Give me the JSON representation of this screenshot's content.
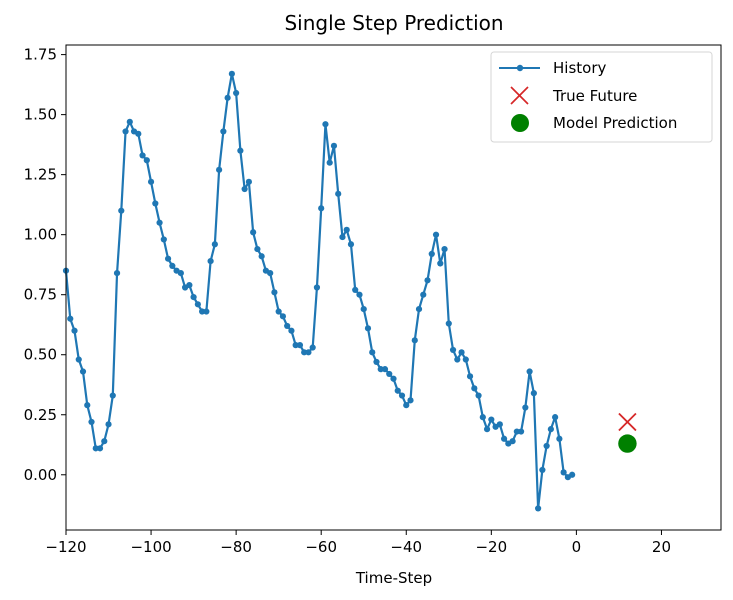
{
  "chart_data": {
    "type": "line",
    "title": "Single Step Prediction",
    "xlabel": "Time-Step",
    "ylabel": "",
    "xlim": [
      -120,
      34
    ],
    "ylim": [
      -0.23,
      1.79
    ],
    "grid": false,
    "legend_position": "top-right",
    "x_ticks": [
      -120,
      -100,
      -80,
      -60,
      -40,
      -20,
      0,
      20
    ],
    "y_ticks": [
      0.0,
      0.25,
      0.5,
      0.75,
      1.0,
      1.25,
      1.5,
      1.75
    ],
    "x_tick_labels": [
      "−120",
      "−100",
      "−80",
      "−60",
      "−40",
      "−20",
      "0",
      "20"
    ],
    "y_tick_labels": [
      "0.00",
      "0.25",
      "0.50",
      "0.75",
      "1.00",
      "1.25",
      "1.50",
      "1.75"
    ],
    "series": [
      {
        "name": "History",
        "kind": "line-marker",
        "color": "#1f77b4",
        "x": [
          -120,
          -119,
          -118,
          -117,
          -116,
          -115,
          -114,
          -113,
          -112,
          -111,
          -110,
          -109,
          -108,
          -107,
          -106,
          -105,
          -104,
          -103,
          -102,
          -101,
          -100,
          -99,
          -98,
          -97,
          -96,
          -95,
          -94,
          -93,
          -92,
          -91,
          -90,
          -89,
          -88,
          -87,
          -86,
          -85,
          -84,
          -83,
          -82,
          -81,
          -80,
          -79,
          -78,
          -77,
          -76,
          -75,
          -74,
          -73,
          -72,
          -71,
          -70,
          -69,
          -68,
          -67,
          -66,
          -65,
          -64,
          -63,
          -62,
          -61,
          -60,
          -59,
          -58,
          -57,
          -56,
          -55,
          -54,
          -53,
          -52,
          -51,
          -50,
          -49,
          -48,
          -47,
          -46,
          -45,
          -44,
          -43,
          -42,
          -41,
          -40,
          -39,
          -38,
          -37,
          -36,
          -35,
          -34,
          -33,
          -32,
          -31,
          -30,
          -29,
          -28,
          -27,
          -26,
          -25,
          -24,
          -23,
          -22,
          -21,
          -20,
          -19,
          -18,
          -17,
          -16,
          -15,
          -14,
          -13,
          -12,
          -11,
          -10,
          -9,
          -8,
          -7,
          -6,
          -5,
          -4,
          -3,
          -2,
          -1
        ],
        "y": [
          0.85,
          0.65,
          0.6,
          0.48,
          0.43,
          0.29,
          0.22,
          0.11,
          0.11,
          0.14,
          0.21,
          0.33,
          0.84,
          1.1,
          1.43,
          1.47,
          1.43,
          1.42,
          1.33,
          1.31,
          1.22,
          1.13,
          1.05,
          0.98,
          0.9,
          0.87,
          0.85,
          0.84,
          0.78,
          0.79,
          0.74,
          0.71,
          0.68,
          0.68,
          0.89,
          0.96,
          1.27,
          1.43,
          1.57,
          1.67,
          1.59,
          1.35,
          1.19,
          1.22,
          1.01,
          0.94,
          0.91,
          0.85,
          0.84,
          0.76,
          0.68,
          0.66,
          0.62,
          0.6,
          0.54,
          0.54,
          0.51,
          0.51,
          0.53,
          0.78,
          1.11,
          1.46,
          1.3,
          1.37,
          1.17,
          0.99,
          1.02,
          0.96,
          0.77,
          0.75,
          0.69,
          0.61,
          0.51,
          0.47,
          0.44,
          0.44,
          0.42,
          0.4,
          0.35,
          0.33,
          0.29,
          0.31,
          0.56,
          0.69,
          0.75,
          0.81,
          0.92,
          1.0,
          0.88,
          0.94,
          0.63,
          0.52,
          0.48,
          0.51,
          0.48,
          0.41,
          0.36,
          0.33,
          0.24,
          0.19,
          0.23,
          0.2,
          0.21,
          0.15,
          0.13,
          0.14,
          0.18,
          0.18,
          0.28,
          0.43,
          0.34,
          -0.14,
          0.02,
          0.12,
          0.19,
          0.24,
          0.15,
          0.01,
          -0.01,
          0.0
        ]
      },
      {
        "name": "True Future",
        "kind": "x-marker",
        "color": "#d62728",
        "x": [
          12
        ],
        "y": [
          0.22
        ]
      },
      {
        "name": "Model Prediction",
        "kind": "circle-marker",
        "color": "#008000",
        "x": [
          12
        ],
        "y": [
          0.13
        ]
      }
    ]
  }
}
